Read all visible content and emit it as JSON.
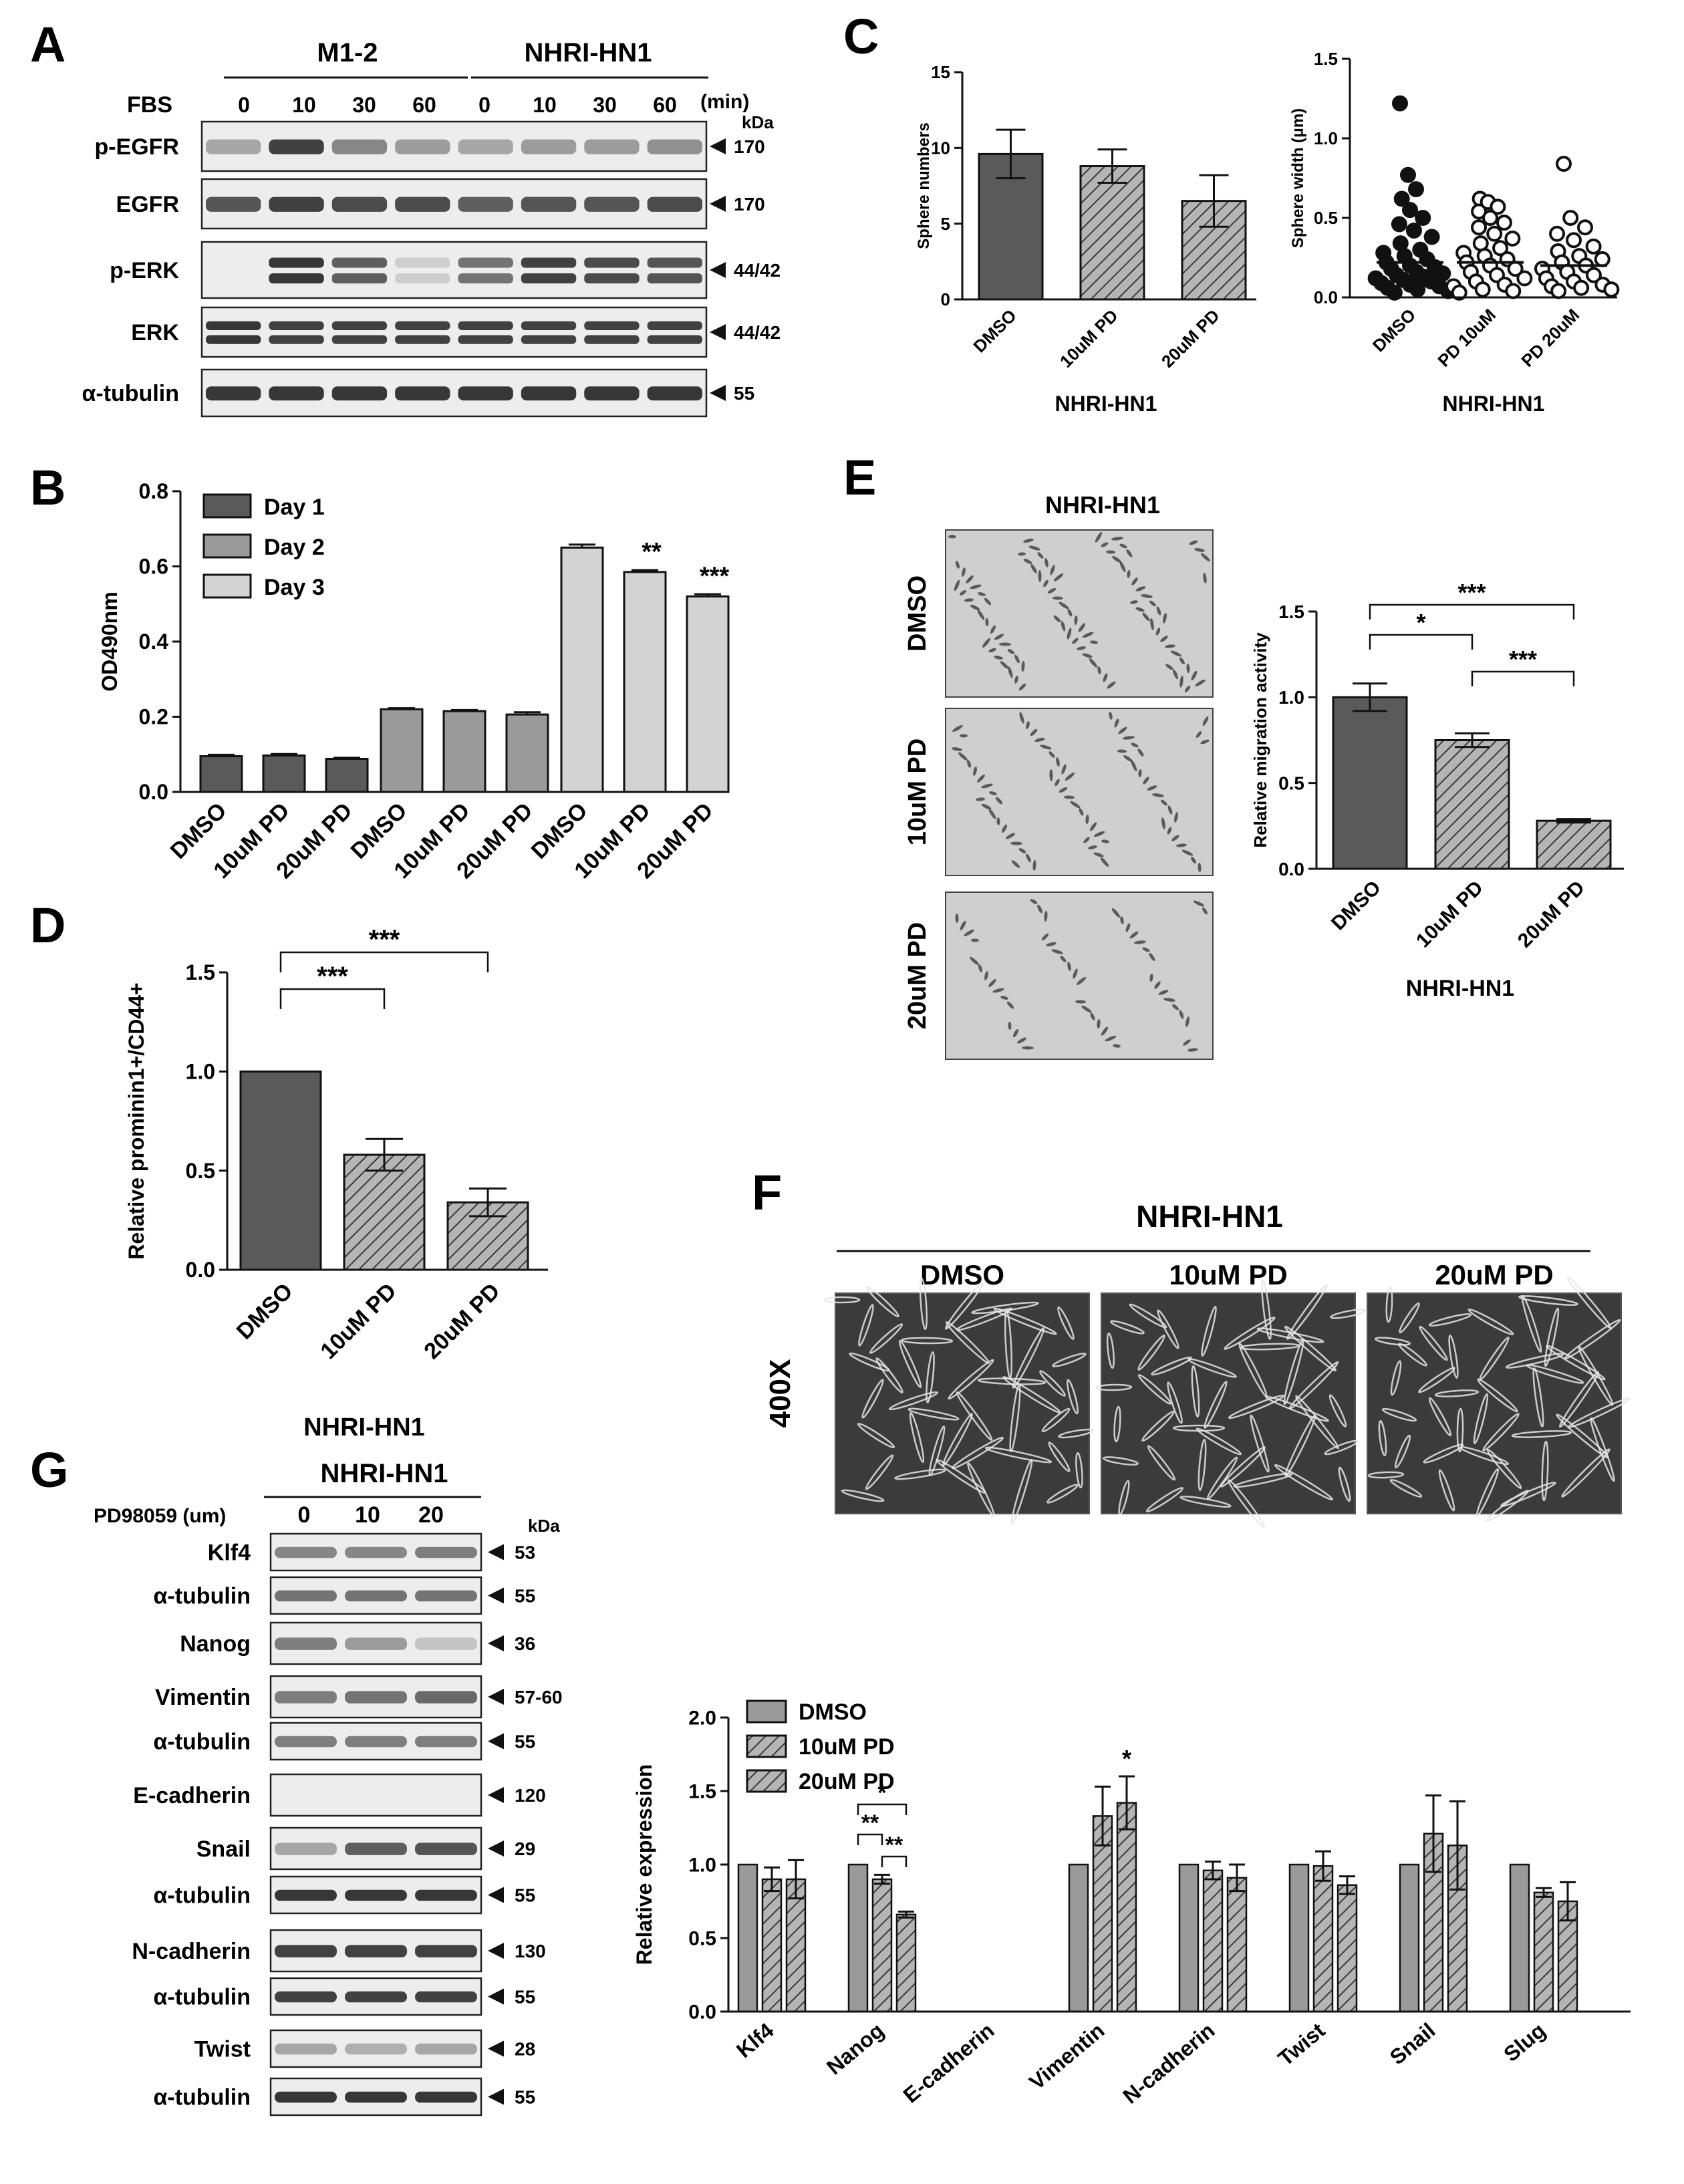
{
  "panel_letters": {
    "a": "A",
    "b": "B",
    "c": "C",
    "d": "D",
    "e": "E",
    "f": "F",
    "g": "G"
  },
  "colors": {
    "dark": "#5a5a5a",
    "mid": "#9a9a9a",
    "light": "#d3d3d3",
    "hatch": "#8a8a8a"
  },
  "panel_a": {
    "groups": [
      "M1-2",
      "NHRI-HN1"
    ],
    "fbs_label": "FBS",
    "times": [
      "0",
      "10",
      "30",
      "60",
      "0",
      "10",
      "30",
      "60"
    ],
    "unit": "(min)",
    "kda": "kDa",
    "rows": [
      {
        "label": "p-EGFR",
        "size": "170"
      },
      {
        "label": "EGFR",
        "size": "170"
      },
      {
        "label": "p-ERK",
        "size": "44/42"
      },
      {
        "label": "ERK",
        "size": "44/42"
      },
      {
        "label": "α-tubulin",
        "size": "55"
      }
    ]
  },
  "panel_e": {
    "title": "NHRI-HN1",
    "rows": [
      "DMSO",
      "10uM PD",
      "20uM PD"
    ]
  },
  "panel_f": {
    "title": "NHRI-HN1",
    "cols": [
      "DMSO",
      "10uM PD",
      "20uM PD"
    ],
    "side": "400X"
  },
  "panel_g_blot": {
    "title": "NHRI-HN1",
    "treatment": "PD98059 (um)",
    "doses": [
      "0",
      "10",
      "20"
    ],
    "kda": "kDa",
    "rows": [
      {
        "label": "Klf4",
        "size": "53"
      },
      {
        "label": "α-tubulin",
        "size": "55"
      },
      {
        "label": "Nanog",
        "size": "36"
      },
      {
        "label": "Vimentin",
        "size": "57-60"
      },
      {
        "label": "α-tubulin",
        "size": "55"
      },
      {
        "label": "E-cadherin",
        "size": "120"
      },
      {
        "label": "Snail",
        "size": "29"
      },
      {
        "label": "α-tubulin",
        "size": "55"
      },
      {
        "label": "N-cadherin",
        "size": "130"
      },
      {
        "label": "α-tubulin",
        "size": "55"
      },
      {
        "label": "Twist",
        "size": "28"
      },
      {
        "label": "α-tubulin",
        "size": "55"
      }
    ]
  },
  "chart_data": [
    {
      "id": "B",
      "type": "bar",
      "ylabel": "OD490nm",
      "ylim": [
        0,
        0.8
      ],
      "yticks": [
        "0.0",
        "0.2",
        "0.4",
        "0.6",
        "0.8"
      ],
      "groups": [
        {
          "legend": "Day 1",
          "categories": [
            "DMSO",
            "10uM PD",
            "20uM PD"
          ],
          "values": [
            0.095,
            0.097,
            0.088
          ],
          "err": [
            0.004,
            0.004,
            0.003
          ],
          "sig": [
            "",
            "",
            ""
          ]
        },
        {
          "legend": "Day 2",
          "categories": [
            "DMSO",
            "10uM PD",
            "20uM PD"
          ],
          "values": [
            0.22,
            0.215,
            0.206
          ],
          "err": [
            0.003,
            0.003,
            0.006
          ],
          "sig": [
            "",
            "",
            ""
          ]
        },
        {
          "legend": "Day 3",
          "categories": [
            "DMSO",
            "10uM PD",
            "20uM PD"
          ],
          "values": [
            0.65,
            0.585,
            0.52
          ],
          "err": [
            0.008,
            0.005,
            0.006
          ],
          "sig": [
            "",
            "**",
            "***"
          ]
        }
      ]
    },
    {
      "id": "C1",
      "type": "bar",
      "xlabel": "NHRI-HN1",
      "ylabel": "Sphere numbers",
      "ylim": [
        0,
        15
      ],
      "yticks": [
        "0",
        "5",
        "10",
        "15"
      ],
      "categories": [
        "DMSO",
        "10uM PD",
        "20uM PD"
      ],
      "values": [
        9.6,
        8.8,
        6.5
      ],
      "err": [
        1.6,
        1.1,
        1.7
      ]
    },
    {
      "id": "C2",
      "type": "scatter",
      "xlabel": "NHRI-HN1",
      "ylabel": "Sphere width (μm)",
      "ylim": [
        0,
        1.5
      ],
      "yticks": [
        "0.0",
        "0.5",
        "1.0",
        "1.5"
      ],
      "categories": [
        "DMSO",
        "PD 10uM",
        "PD 20uM"
      ],
      "series": [
        {
          "name": "DMSO",
          "values": [
            1.22,
            0.77,
            0.68,
            0.62,
            0.55,
            0.5,
            0.46,
            0.42,
            0.38,
            0.34,
            0.3,
            0.28,
            0.26,
            0.24,
            0.22,
            0.2,
            0.19,
            0.18,
            0.16,
            0.15,
            0.14,
            0.13,
            0.12,
            0.11,
            0.1,
            0.09,
            0.08,
            0.07,
            0.06,
            0.05,
            0.04,
            0.03
          ],
          "mean": 0.22
        },
        {
          "name": "PD 10uM",
          "values": [
            0.62,
            0.6,
            0.57,
            0.54,
            0.5,
            0.47,
            0.44,
            0.4,
            0.37,
            0.34,
            0.31,
            0.28,
            0.26,
            0.24,
            0.22,
            0.2,
            0.18,
            0.16,
            0.14,
            0.12,
            0.1,
            0.08,
            0.07,
            0.05,
            0.04,
            0.03
          ],
          "mean": 0.22
        },
        {
          "name": "PD 20uM",
          "values": [
            0.84,
            0.5,
            0.44,
            0.4,
            0.36,
            0.32,
            0.29,
            0.26,
            0.24,
            0.22,
            0.2,
            0.18,
            0.16,
            0.14,
            0.12,
            0.1,
            0.08,
            0.07,
            0.06,
            0.05,
            0.04
          ],
          "mean": 0.2
        }
      ]
    },
    {
      "id": "D",
      "type": "bar",
      "xlabel": "NHRI-HN1",
      "ylabel": "Relative prominin1+/CD44+",
      "ylim": [
        0,
        1.5
      ],
      "yticks": [
        "0.0",
        "0.5",
        "1.0",
        "1.5"
      ],
      "categories": [
        "DMSO",
        "10uM PD",
        "20uM PD"
      ],
      "values": [
        1.0,
        0.58,
        0.34
      ],
      "err": [
        0,
        0.08,
        0.07
      ],
      "sig_brackets": [
        {
          "from": 0,
          "to": 1,
          "text": "***"
        },
        {
          "from": 0,
          "to": 2,
          "text": "***"
        }
      ]
    },
    {
      "id": "E",
      "type": "bar",
      "xlabel": "NHRI-HN1",
      "ylabel": "Relative migration activity",
      "ylim": [
        0,
        1.5
      ],
      "yticks": [
        "0.0",
        "0.5",
        "1.0",
        "1.5"
      ],
      "categories": [
        "DMSO",
        "10uM PD",
        "20uM PD"
      ],
      "values": [
        1.0,
        0.75,
        0.28
      ],
      "err": [
        0.08,
        0.04,
        0.01
      ],
      "sig_brackets": [
        {
          "from": 0,
          "to": 1,
          "text": "*"
        },
        {
          "from": 0,
          "to": 2,
          "text": "***"
        },
        {
          "from": 1,
          "to": 2,
          "text": "***"
        }
      ]
    },
    {
      "id": "G",
      "type": "bar",
      "ylabel": "Relative expression",
      "ylim": [
        0,
        2.0
      ],
      "yticks": [
        "0.0",
        "0.5",
        "1.0",
        "1.5",
        "2.0"
      ],
      "categories": [
        "Klf4",
        "Nanog",
        "E-cadherin",
        "Vimentin",
        "N-cadherin",
        "Twist",
        "Snail",
        "Slug"
      ],
      "series": [
        {
          "name": "DMSO",
          "values": [
            1.0,
            1.0,
            null,
            1.0,
            1.0,
            1.0,
            1.0,
            1.0
          ],
          "err": [
            0,
            0,
            0,
            0,
            0,
            0,
            0,
            0
          ]
        },
        {
          "name": "10uM PD",
          "values": [
            0.9,
            0.9,
            null,
            1.33,
            0.96,
            0.99,
            1.21,
            0.81
          ],
          "err": [
            0.08,
            0.03,
            0,
            0.2,
            0.06,
            0.1,
            0.26,
            0.03
          ]
        },
        {
          "name": "20uM PD",
          "values": [
            0.9,
            0.66,
            null,
            1.42,
            0.91,
            0.86,
            1.13,
            0.75
          ],
          "err": [
            0.13,
            0.02,
            0,
            0.18,
            0.09,
            0.06,
            0.3,
            0.13
          ]
        }
      ],
      "sig_marks": [
        {
          "category": 3,
          "series": 2,
          "text": "*"
        }
      ],
      "sig_brackets": [
        {
          "category": 1,
          "from": 0,
          "to": 1,
          "text": "**"
        },
        {
          "category": 1,
          "from": 1,
          "to": 2,
          "text": "**"
        },
        {
          "category": 1,
          "from": 0,
          "to": 2,
          "text": "*"
        }
      ]
    }
  ]
}
